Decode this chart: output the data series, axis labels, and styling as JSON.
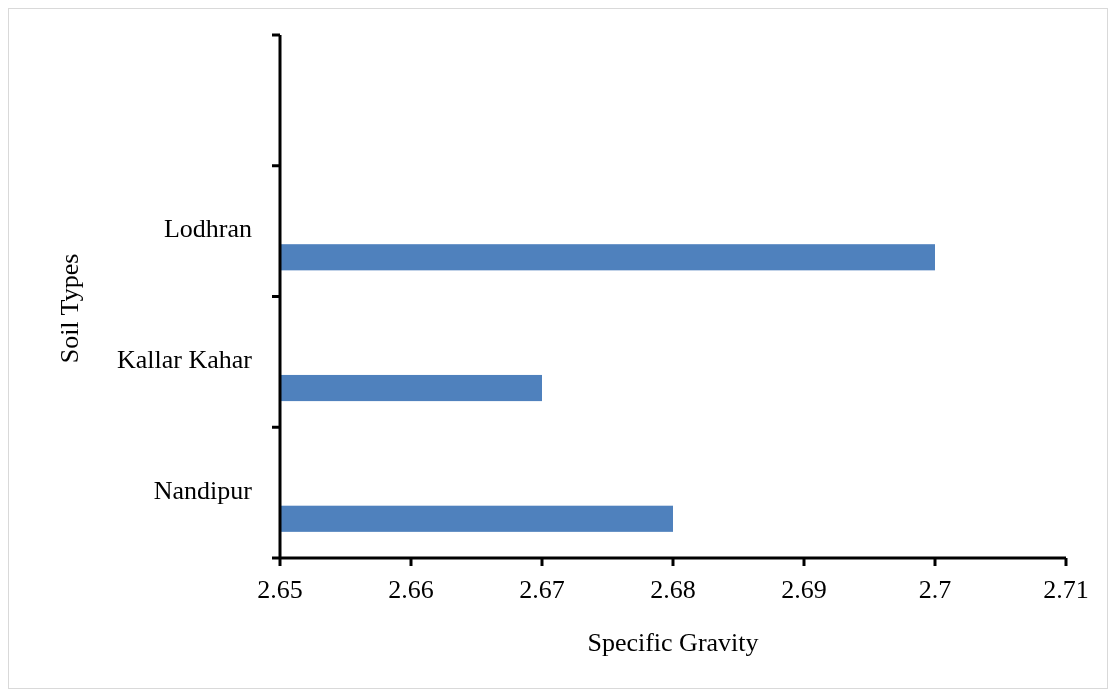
{
  "chart_data": {
    "type": "bar",
    "orientation": "horizontal",
    "categories": [
      null,
      "Lodhran",
      "Kallar Kahar",
      "Nandipur"
    ],
    "values": [
      null,
      2.7,
      2.67,
      2.68
    ],
    "color": "#4f81bd",
    "xlabel": "Specific Gravity",
    "ylabel": "Soil Types",
    "xlim": [
      2.65,
      2.71
    ],
    "xticks": [
      2.65,
      2.66,
      2.67,
      2.68,
      2.69,
      2.7,
      2.71
    ],
    "grid": false
  }
}
